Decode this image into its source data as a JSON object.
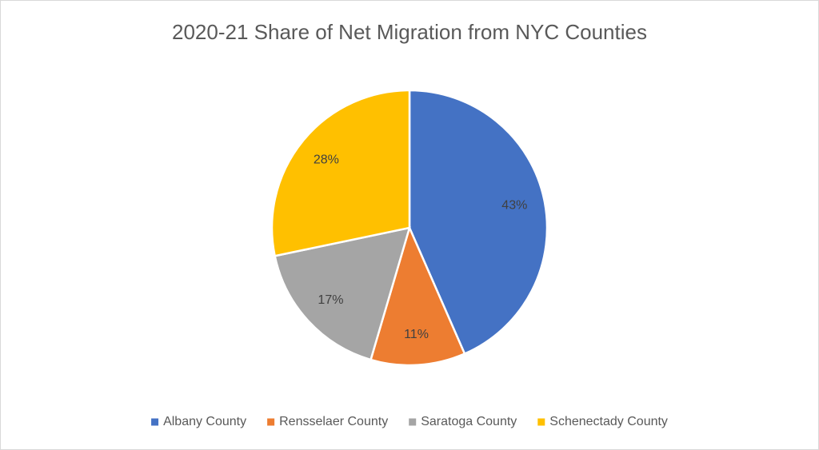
{
  "chart_data": {
    "type": "pie",
    "title": "2020-21 Share of Net Migration from NYC Counties",
    "categories": [
      "Albany County",
      "Rensselaer County",
      "Saratoga County",
      "Schenectady County"
    ],
    "values": [
      43,
      11,
      17,
      28
    ],
    "value_labels": [
      "43%",
      "11%",
      "17%",
      "28%"
    ],
    "colors": [
      "#4472c4",
      "#ed7d31",
      "#a5a5a5",
      "#ffc000"
    ],
    "legend": "bottom"
  }
}
